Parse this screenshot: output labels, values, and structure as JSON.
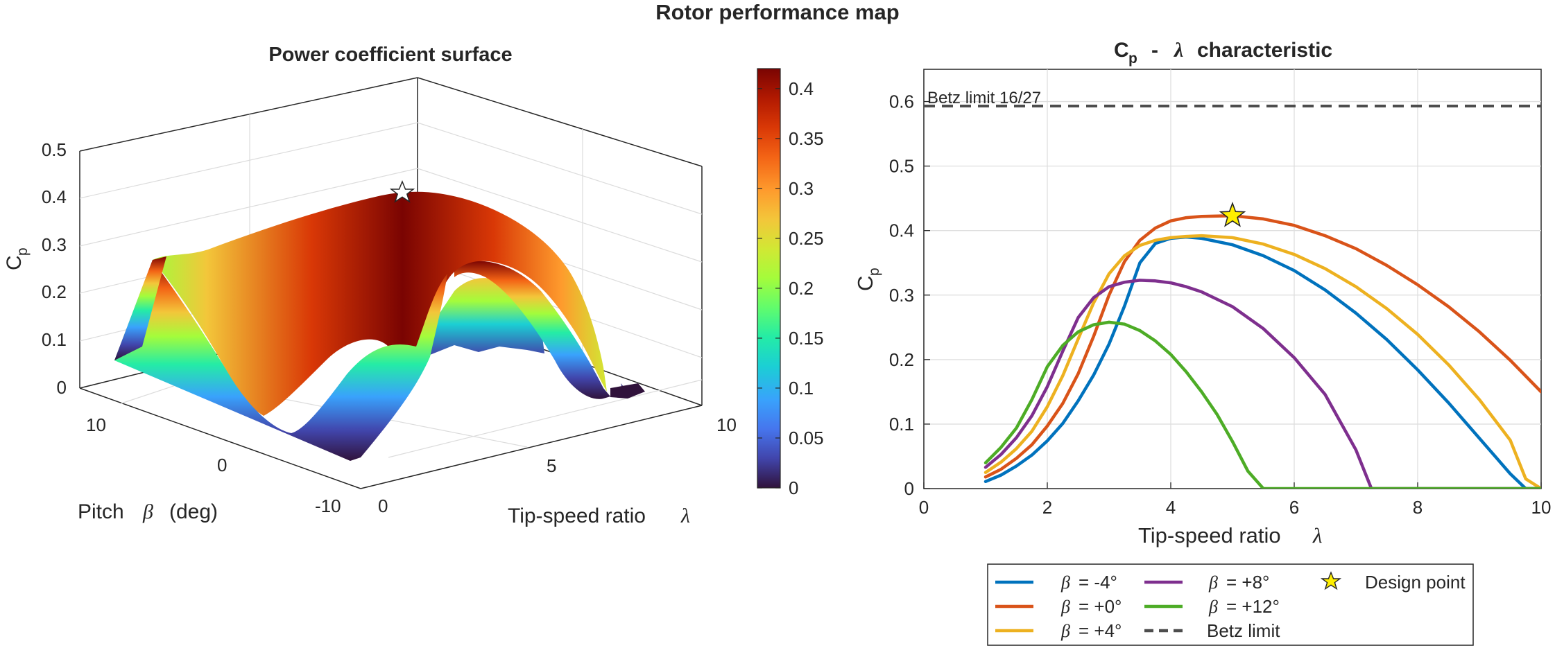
{
  "figure_title": "Rotor performance map",
  "surface": {
    "title": "Power coefficient surface",
    "zlabel_main": "C",
    "zlabel_sub": "p",
    "xlabel_text": "Tip-speed  ratio",
    "xlabel_symbol": "λ",
    "ylabel_text": "Pitch",
    "ylabel_symbol": "β",
    "ylabel_unit": "(deg)",
    "z_ticks": [
      "0",
      "0.1",
      "0.2",
      "0.3",
      "0.4",
      "0.5"
    ],
    "x_ticks": [
      "0",
      "5",
      "10"
    ],
    "y_ticks": [
      "-10",
      "0",
      "10"
    ]
  },
  "colorbar": {
    "ticks": [
      "0",
      "0.05",
      "0.1",
      "0.15",
      "0.2",
      "0.25",
      "0.3",
      "0.35",
      "0.4"
    ],
    "range": [
      0,
      0.42
    ],
    "colormap": "turbo"
  },
  "line_chart": {
    "title_main": "C",
    "title_sub": "p",
    "title_rest": "characteristic",
    "title_symbol": "λ",
    "ylabel_main": "C",
    "ylabel_sub": "p",
    "xlabel_text": "Tip-speed  ratio",
    "xlabel_symbol": "λ",
    "betz_label": "Betz limit 16/27",
    "x_ticks": [
      "0",
      "2",
      "4",
      "6",
      "8",
      "10"
    ],
    "y_ticks": [
      "0",
      "0.1",
      "0.2",
      "0.3",
      "0.4",
      "0.5",
      "0.6"
    ]
  },
  "legend": {
    "items": [
      {
        "label": "= -4°",
        "color": "#0072BD"
      },
      {
        "label": "= +0°",
        "color": "#D95319"
      },
      {
        "label": "= +4°",
        "color": "#EDB120"
      },
      {
        "label": "= +8°",
        "color": "#7E2F8E"
      },
      {
        "label": "= +12°",
        "color": "#4DAC26"
      }
    ],
    "symbol": "β",
    "betz": "Betz limit",
    "design": "Design point"
  },
  "chart_data": [
    {
      "type": "line",
      "title": "Cp - λ characteristic",
      "xlabel": "Tip-speed ratio λ",
      "ylabel": "Cp",
      "xlim": [
        0,
        10
      ],
      "ylim": [
        0,
        0.65
      ],
      "grid": true,
      "legend_position": "bottom",
      "series": [
        {
          "name": "β = -4°",
          "color": "#0072BD",
          "x": [
            1,
            1.25,
            1.5,
            1.75,
            2,
            2.25,
            2.5,
            2.75,
            3,
            3.25,
            3.5,
            3.75,
            4,
            4.25,
            4.5,
            5,
            5.5,
            6,
            6.5,
            7,
            7.5,
            8,
            8.5,
            9,
            9.5,
            9.75,
            10
          ],
          "y": [
            0.011,
            0.021,
            0.035,
            0.052,
            0.074,
            0.101,
            0.136,
            0.176,
            0.224,
            0.283,
            0.35,
            0.38,
            0.388,
            0.39,
            0.388,
            0.378,
            0.361,
            0.338,
            0.308,
            0.272,
            0.231,
            0.184,
            0.133,
            0.078,
            0.023,
            0,
            0
          ]
        },
        {
          "name": "β = +0°",
          "color": "#D95319",
          "x": [
            1,
            1.25,
            1.5,
            1.75,
            2,
            2.25,
            2.5,
            2.75,
            3,
            3.25,
            3.5,
            3.75,
            4,
            4.25,
            4.5,
            5,
            5.5,
            6,
            6.5,
            7,
            7.5,
            8,
            8.5,
            9,
            9.5,
            10
          ],
          "y": [
            0.018,
            0.03,
            0.047,
            0.068,
            0.097,
            0.132,
            0.178,
            0.236,
            0.3,
            0.352,
            0.385,
            0.404,
            0.415,
            0.42,
            0.422,
            0.423,
            0.418,
            0.408,
            0.392,
            0.372,
            0.346,
            0.316,
            0.282,
            0.243,
            0.199,
            0.15
          ]
        },
        {
          "name": "β = +4°",
          "color": "#EDB120",
          "x": [
            1,
            1.25,
            1.5,
            1.75,
            2,
            2.25,
            2.5,
            2.75,
            3,
            3.25,
            3.5,
            3.75,
            4,
            4.25,
            4.5,
            5,
            5.5,
            6,
            6.5,
            7,
            7.5,
            8,
            8.5,
            9,
            9.5,
            9.75,
            10
          ],
          "y": [
            0.025,
            0.041,
            0.062,
            0.089,
            0.127,
            0.175,
            0.232,
            0.288,
            0.333,
            0.361,
            0.377,
            0.385,
            0.389,
            0.391,
            0.392,
            0.389,
            0.379,
            0.363,
            0.341,
            0.313,
            0.279,
            0.239,
            0.192,
            0.138,
            0.075,
            0.015,
            0
          ]
        },
        {
          "name": "β = +8°",
          "color": "#7E2F8E",
          "x": [
            1,
            1.25,
            1.5,
            1.75,
            2,
            2.25,
            2.5,
            2.75,
            3,
            3.25,
            3.5,
            3.75,
            4,
            4.25,
            4.5,
            5,
            5.5,
            6,
            6.5,
            7,
            7.25,
            7.5,
            8,
            9,
            10
          ],
          "y": [
            0.033,
            0.053,
            0.079,
            0.113,
            0.158,
            0.213,
            0.265,
            0.296,
            0.313,
            0.32,
            0.323,
            0.322,
            0.319,
            0.313,
            0.305,
            0.282,
            0.248,
            0.203,
            0.146,
            0.06,
            0,
            0,
            0,
            0,
            0
          ]
        },
        {
          "name": "β = +12°",
          "color": "#4DAC26",
          "x": [
            1,
            1.25,
            1.5,
            1.75,
            2,
            2.25,
            2.5,
            2.75,
            3,
            3.25,
            3.5,
            3.75,
            4,
            4.25,
            4.5,
            4.75,
            5,
            5.25,
            5.5,
            6,
            7,
            8,
            9,
            10
          ],
          "y": [
            0.04,
            0.064,
            0.094,
            0.138,
            0.189,
            0.222,
            0.243,
            0.254,
            0.258,
            0.255,
            0.245,
            0.229,
            0.208,
            0.181,
            0.15,
            0.115,
            0.073,
            0.027,
            0,
            0,
            0,
            0,
            0,
            0
          ]
        }
      ],
      "betz_limit": 0.593,
      "design_point": {
        "x": 5,
        "y": 0.423
      }
    },
    {
      "type": "heatmap",
      "title": "Power coefficient surface",
      "xlabel": "Tip-speed ratio λ",
      "ylabel": "Pitch β (deg)",
      "zlabel": "Cp",
      "xlim": [
        0,
        10
      ],
      "ylim": [
        -10,
        12
      ],
      "zlim": [
        0,
        0.5
      ],
      "colorbar_range": [
        0,
        0.42
      ],
      "peak": {
        "x": 5,
        "y": 0,
        "z": 0.423
      }
    }
  ]
}
